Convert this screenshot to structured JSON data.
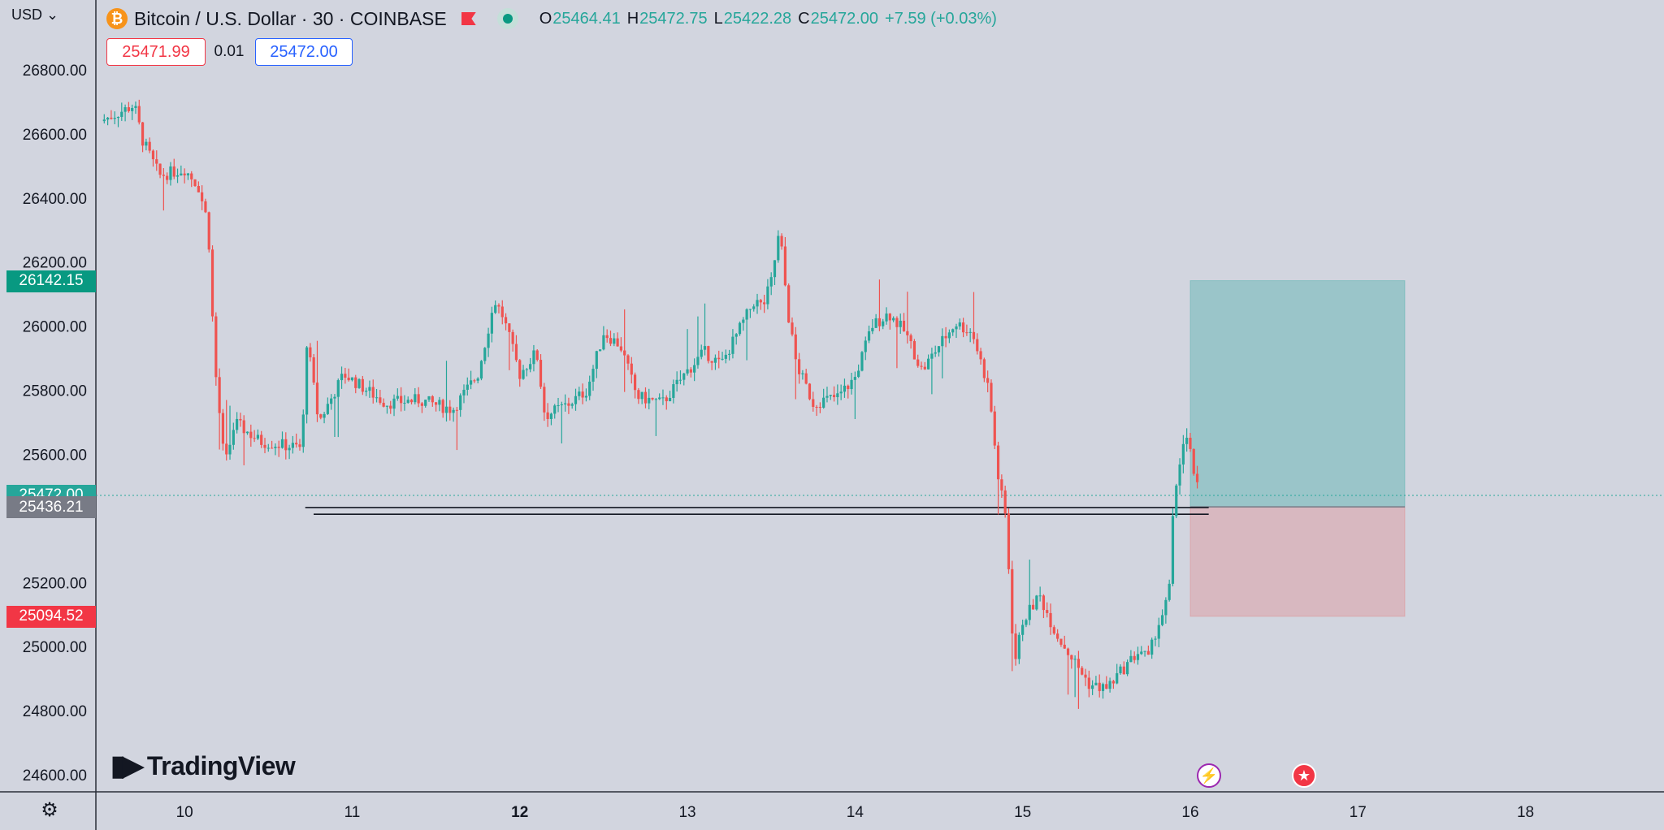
{
  "header": {
    "symbol": "Bitcoin / U.S. Dollar · 30 · COINBASE",
    "coin_icon": "bitcoin-icon",
    "ohlc": [
      {
        "key": "O",
        "value": "25464.41"
      },
      {
        "key": "H",
        "value": "25472.75"
      },
      {
        "key": "L",
        "value": "25422.28"
      },
      {
        "key": "C",
        "value": "25472.00"
      }
    ],
    "change": "+7.59 (+0.03%)"
  },
  "trade": {
    "sell": "25471.99",
    "spread": "0.01",
    "buy": "25472.00"
  },
  "currency": "USD",
  "price_tags": [
    {
      "label": "26142.15",
      "value": 26142.15,
      "color": "#089981"
    },
    {
      "label": "25472.00",
      "value": 25472.0,
      "color": "#26a69a"
    },
    {
      "label": "25436.21",
      "value": 25436.21,
      "color": "#787b86"
    },
    {
      "label": "25094.52",
      "value": 25094.52,
      "color": "#f23645"
    }
  ],
  "brand": "TradingView",
  "colors": {
    "up": "#26a69a",
    "down": "#ef5350",
    "background": "#d2d5df"
  },
  "chart_data": {
    "type": "candlestick",
    "ylim": [
      24600,
      26800
    ],
    "xlim": [
      9.5,
      18.2
    ],
    "y_ticks": [
      "24600.00",
      "24800.00",
      "25000.00",
      "25200.00",
      "25600.00",
      "25800.00",
      "26000.00",
      "26200.00",
      "26400.00",
      "26600.00",
      "26800.00"
    ],
    "y_tick_values": [
      24600,
      24800,
      25000,
      25200,
      25600,
      25800,
      26000,
      26200,
      26400,
      26600,
      26800
    ],
    "x_ticks": [
      {
        "label": "10",
        "value": 10
      },
      {
        "label": "11",
        "value": 11
      },
      {
        "label": "12",
        "value": 12
      },
      {
        "label": "13",
        "value": 13
      },
      {
        "label": "14",
        "value": 14
      },
      {
        "label": "15",
        "value": 15
      },
      {
        "label": "16",
        "value": 16
      },
      {
        "label": "17",
        "value": 17
      },
      {
        "label": "18",
        "value": 18
      }
    ],
    "price_path": [
      [
        9.5,
        26640
      ],
      [
        9.7,
        26690
      ],
      [
        9.75,
        26580
      ],
      [
        9.85,
        26470
      ],
      [
        10.0,
        26490
      ],
      [
        10.08,
        26440
      ],
      [
        10.14,
        26320
      ],
      [
        10.18,
        25880
      ],
      [
        10.24,
        25560
      ],
      [
        10.3,
        25700
      ],
      [
        10.45,
        25640
      ],
      [
        10.7,
        25620
      ],
      [
        10.73,
        25960
      ],
      [
        10.8,
        25700
      ],
      [
        10.95,
        25850
      ],
      [
        11.2,
        25760
      ],
      [
        11.4,
        25770
      ],
      [
        11.6,
        25740
      ],
      [
        11.75,
        25850
      ],
      [
        11.85,
        26080
      ],
      [
        11.9,
        26030
      ],
      [
        12.0,
        25850
      ],
      [
        12.1,
        25920
      ],
      [
        12.15,
        25720
      ],
      [
        12.3,
        25760
      ],
      [
        12.4,
        25800
      ],
      [
        12.5,
        25980
      ],
      [
        12.6,
        25940
      ],
      [
        12.7,
        25780
      ],
      [
        12.85,
        25760
      ],
      [
        13.0,
        25860
      ],
      [
        13.1,
        25920
      ],
      [
        13.2,
        25880
      ],
      [
        13.3,
        25980
      ],
      [
        13.4,
        26080
      ],
      [
        13.45,
        26060
      ],
      [
        13.5,
        26140
      ],
      [
        13.55,
        26300
      ],
      [
        13.6,
        26040
      ],
      [
        13.65,
        25880
      ],
      [
        13.75,
        25760
      ],
      [
        13.9,
        25780
      ],
      [
        14.0,
        25840
      ],
      [
        14.1,
        26000
      ],
      [
        14.2,
        26040
      ],
      [
        14.3,
        25980
      ],
      [
        14.4,
        25860
      ],
      [
        14.5,
        25940
      ],
      [
        14.6,
        26010
      ],
      [
        14.7,
        25980
      ],
      [
        14.8,
        25800
      ],
      [
        14.85,
        25540
      ],
      [
        14.9,
        25400
      ],
      [
        14.95,
        24940
      ],
      [
        15.0,
        25080
      ],
      [
        15.1,
        25160
      ],
      [
        15.2,
        25040
      ],
      [
        15.3,
        24960
      ],
      [
        15.4,
        24880
      ],
      [
        15.5,
        24870
      ],
      [
        15.6,
        24930
      ],
      [
        15.7,
        24990
      ],
      [
        15.75,
        24960
      ],
      [
        15.8,
        25060
      ],
      [
        15.85,
        25120
      ],
      [
        15.88,
        25200
      ],
      [
        15.9,
        25440
      ],
      [
        15.93,
        25560
      ],
      [
        15.97,
        25660
      ],
      [
        16.0,
        25600
      ],
      [
        16.05,
        25472
      ]
    ],
    "horizontal_lines": [
      25434,
      25413
    ],
    "long_position": {
      "start": 16.0,
      "end": 17.28,
      "entry": 25436.21,
      "target": 26142.15,
      "stop": 25094.52
    },
    "current_price": 25472.0
  }
}
